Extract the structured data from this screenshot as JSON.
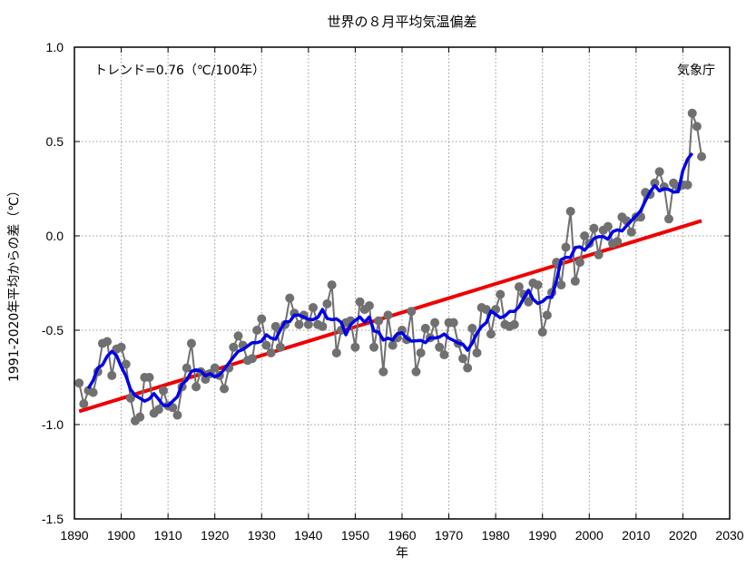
{
  "chart_data": {
    "type": "line",
    "title": "世界の８月平均気温偏差",
    "xlabel": "年",
    "ylabel": "1991-2020年平均からの差（℃）",
    "xlim": [
      1890,
      2030
    ],
    "ylim": [
      -1.5,
      1.0
    ],
    "xticks": [
      1890,
      1900,
      1910,
      1920,
      1930,
      1940,
      1950,
      1960,
      1970,
      1980,
      1990,
      2000,
      2010,
      2020,
      2030
    ],
    "xtick_labels": [
      "1890",
      "1900",
      "1910",
      "1920",
      "1930",
      "1940",
      "1950",
      "1960",
      "1970",
      "1980",
      "1990",
      "2000",
      "2010",
      "2020",
      "2030"
    ],
    "yticks": [
      1.0,
      0.5,
      0.0,
      -0.5,
      -1.0,
      -1.5
    ],
    "ytick_labels": [
      "1.0",
      "0.5",
      "0.0",
      "-0.5",
      "-1.0",
      "-1.5"
    ],
    "grid": true,
    "annotations": {
      "trend_text": "トレンド=0.76（℃/100年）",
      "source": "気象庁"
    },
    "series": [
      {
        "name": "annual anomaly",
        "style": "gray line with markers",
        "color": "#707070",
        "x_start": 1891,
        "values": [
          -0.78,
          -0.89,
          -0.82,
          -0.83,
          -0.72,
          -0.57,
          -0.56,
          -0.74,
          -0.6,
          -0.59,
          -0.68,
          -0.86,
          -0.98,
          -0.96,
          -0.75,
          -0.75,
          -0.94,
          -0.92,
          -0.82,
          -0.9,
          -0.91,
          -0.95,
          -0.8,
          -0.7,
          -0.57,
          -0.8,
          -0.72,
          -0.76,
          -0.73,
          -0.7,
          -0.74,
          -0.81,
          -0.7,
          -0.59,
          -0.53,
          -0.58,
          -0.66,
          -0.65,
          -0.5,
          -0.44,
          -0.58,
          -0.62,
          -0.48,
          -0.59,
          -0.47,
          -0.33,
          -0.41,
          -0.47,
          -0.42,
          -0.47,
          -0.38,
          -0.47,
          -0.48,
          -0.36,
          -0.26,
          -0.62,
          -0.5,
          -0.46,
          -0.45,
          -0.59,
          -0.35,
          -0.39,
          -0.37,
          -0.59,
          -0.45,
          -0.72,
          -0.42,
          -0.58,
          -0.54,
          -0.5,
          -0.55,
          -0.4,
          -0.72,
          -0.62,
          -0.49,
          -0.54,
          -0.46,
          -0.59,
          -0.63,
          -0.46,
          -0.46,
          -0.57,
          -0.65,
          -0.7,
          -0.49,
          -0.62,
          -0.38,
          -0.39,
          -0.52,
          -0.39,
          -0.31,
          -0.47,
          -0.48,
          -0.47,
          -0.27,
          -0.31,
          -0.35,
          -0.25,
          -0.26,
          -0.51,
          -0.42,
          -0.3,
          -0.14,
          -0.26,
          -0.06,
          0.13,
          -0.24,
          -0.14,
          0.0,
          -0.04,
          0.04,
          -0.1,
          0.03,
          0.05,
          -0.04,
          -0.03,
          0.1,
          0.08,
          0.02,
          0.1,
          0.1,
          0.23,
          0.22,
          0.28,
          0.34,
          0.26,
          0.09,
          0.28,
          0.26,
          0.27,
          0.27,
          0.65,
          0.58,
          0.42
        ]
      },
      {
        "name": "5-year running mean",
        "style": "blue line",
        "color": "#0000e6"
      },
      {
        "name": "trend line",
        "style": "red line",
        "color": "#ee0000",
        "x_range": [
          1891,
          2024
        ],
        "y_range": [
          -0.93,
          0.08
        ]
      }
    ]
  }
}
